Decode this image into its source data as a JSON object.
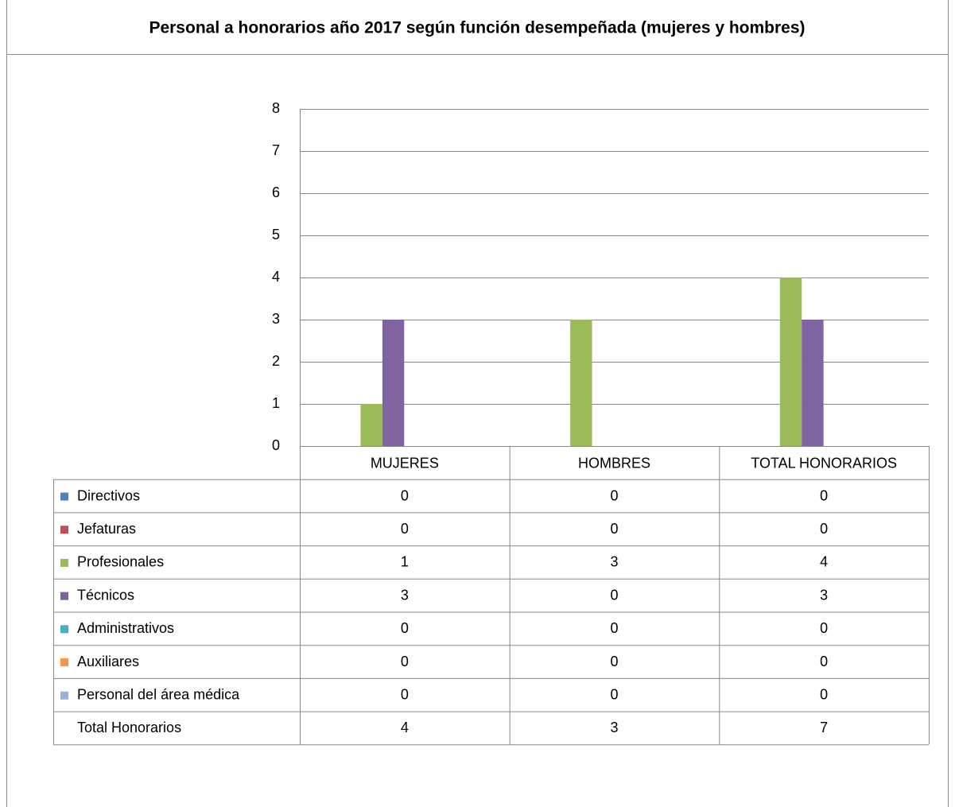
{
  "chart_data": {
    "type": "bar",
    "title": "Personal a honorarios año 2017 según función desempeñada (mujeres y hombres)",
    "categories": [
      "MUJERES",
      "HOMBRES",
      "TOTAL HONORARIOS"
    ],
    "series": [
      {
        "name": "Directivos",
        "color": "#4f81bd",
        "values": [
          0,
          0,
          0
        ]
      },
      {
        "name": "Jefaturas",
        "color": "#c0504d",
        "values": [
          0,
          0,
          0
        ]
      },
      {
        "name": "Profesionales",
        "color": "#9bbb59",
        "values": [
          1,
          3,
          4
        ]
      },
      {
        "name": "Técnicos",
        "color": "#8064a2",
        "values": [
          3,
          0,
          3
        ]
      },
      {
        "name": "Administrativos",
        "color": "#4bacc6",
        "values": [
          0,
          0,
          0
        ]
      },
      {
        "name": "Auxiliares",
        "color": "#f79646",
        "values": [
          0,
          0,
          0
        ]
      },
      {
        "name": "Personal del área médica",
        "color": "#95b3d7",
        "values": [
          0,
          0,
          0
        ]
      }
    ],
    "totals": {
      "name": "Total Honorarios",
      "values": [
        4,
        3,
        7
      ]
    },
    "ylim": [
      0,
      8
    ],
    "yticks": [
      0,
      1,
      2,
      3,
      4,
      5,
      6,
      7,
      8
    ],
    "grid": true
  }
}
